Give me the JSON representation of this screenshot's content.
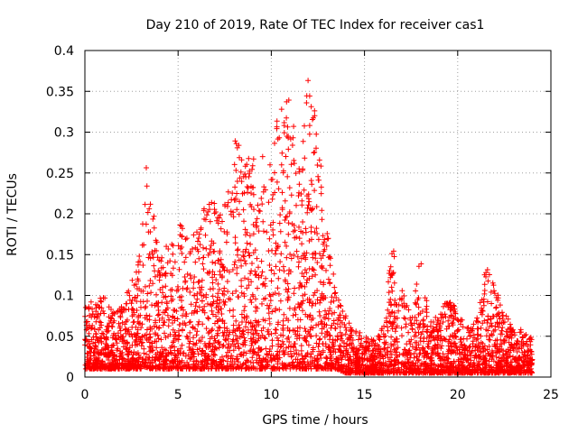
{
  "chart_data": {
    "type": "scatter",
    "title": "Day 210 of 2019, Rate Of TEC Index for receiver cas1",
    "xlabel": "GPS time / hours",
    "ylabel": "ROTI / TECUs",
    "xlim": [
      0,
      25
    ],
    "ylim": [
      0,
      0.4
    ],
    "xticks": [
      0,
      5,
      10,
      15,
      20,
      25
    ],
    "yticks": [
      0,
      0.05,
      0.1,
      0.15,
      0.2,
      0.25,
      0.3,
      0.35,
      0.4
    ],
    "xtick_labels": [
      "0",
      "5",
      "10",
      "15",
      "20",
      "25"
    ],
    "ytick_labels": [
      "0",
      "0.05",
      "0.1",
      "0.15",
      "0.2",
      "0.25",
      "0.3",
      "0.35",
      "0.4"
    ],
    "grid": true,
    "marker": "+",
    "series": [
      {
        "name": "ROTI",
        "color": "#ff0000",
        "envelope": {
          "description": "approximate upper envelope of dense scatter, x in hours, y in TECU/min",
          "x": [
            0,
            0.5,
            1,
            1.5,
            2,
            2.5,
            3,
            3.3,
            3.6,
            4,
            4.5,
            5,
            5.5,
            6,
            6.5,
            7,
            7.5,
            8,
            8.5,
            9,
            9.5,
            10,
            10.5,
            11,
            11.5,
            12,
            12.5,
            13,
            13.5,
            14,
            14.5,
            15,
            15.5,
            16,
            16.5,
            17,
            17.5,
            18,
            18.5,
            19,
            19.5,
            20,
            20.5,
            21,
            21.5,
            22,
            22.5,
            23,
            23.5,
            24
          ],
          "y": [
            0.1,
            0.09,
            0.1,
            0.08,
            0.09,
            0.12,
            0.16,
            0.26,
            0.22,
            0.15,
            0.17,
            0.2,
            0.17,
            0.18,
            0.22,
            0.22,
            0.24,
            0.3,
            0.27,
            0.27,
            0.27,
            0.28,
            0.36,
            0.34,
            0.27,
            0.38,
            0.3,
            0.18,
            0.1,
            0.08,
            0.06,
            0.05,
            0.05,
            0.07,
            0.16,
            0.12,
            0.07,
            0.16,
            0.07,
            0.08,
            0.1,
            0.08,
            0.06,
            0.07,
            0.14,
            0.11,
            0.08,
            0.06,
            0.06,
            0.05
          ],
          "base": [
            0.01,
            0.01,
            0.01,
            0.01,
            0.01,
            0.01,
            0.01,
            0.01,
            0.01,
            0.01,
            0.01,
            0.01,
            0.01,
            0.01,
            0.01,
            0.01,
            0.01,
            0.01,
            0.01,
            0.01,
            0.01,
            0.01,
            0.01,
            0.01,
            0.01,
            0.01,
            0.01,
            0.01,
            0.01,
            0.005,
            0.005,
            0.005,
            0.005,
            0.005,
            0.005,
            0.005,
            0.005,
            0.005,
            0.005,
            0.005,
            0.005,
            0.005,
            0.005,
            0.005,
            0.005,
            0.005,
            0.005,
            0.005,
            0.005,
            0.005
          ]
        }
      }
    ]
  }
}
